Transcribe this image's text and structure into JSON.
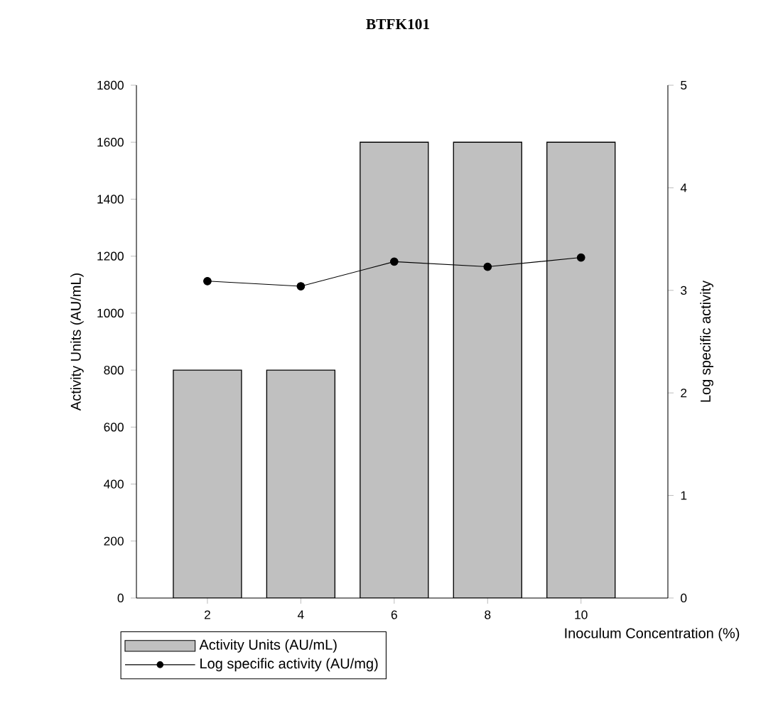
{
  "chart_data": {
    "type": "bar",
    "title": "BTFK101",
    "xlabel": "Inoculum Concentration (%)",
    "ylabel": "Activity Units (AU/mL)",
    "y2label": "Log specific activity",
    "categories": [
      "2",
      "4",
      "6",
      "8",
      "10"
    ],
    "series": [
      {
        "name": "Activity Units (AU/mL)",
        "color": "#c0c0c0",
        "values": [
          800,
          800,
          1600,
          1600,
          1600
        ]
      },
      {
        "name": "Log specific activity (AU/mg)",
        "type": "line",
        "axis": "y2",
        "color": "#000000",
        "marker": "circle",
        "values": [
          3.09,
          3.04,
          3.28,
          3.23,
          3.32
        ]
      }
    ],
    "ylim": [
      0,
      1800
    ],
    "yticks": [
      0,
      200,
      400,
      600,
      800,
      1000,
      1200,
      1400,
      1600,
      1800
    ],
    "y2lim": [
      0,
      5
    ],
    "y2ticks": [
      0,
      1,
      2,
      3,
      4,
      5
    ],
    "legend": "bottom left",
    "grid": false
  }
}
